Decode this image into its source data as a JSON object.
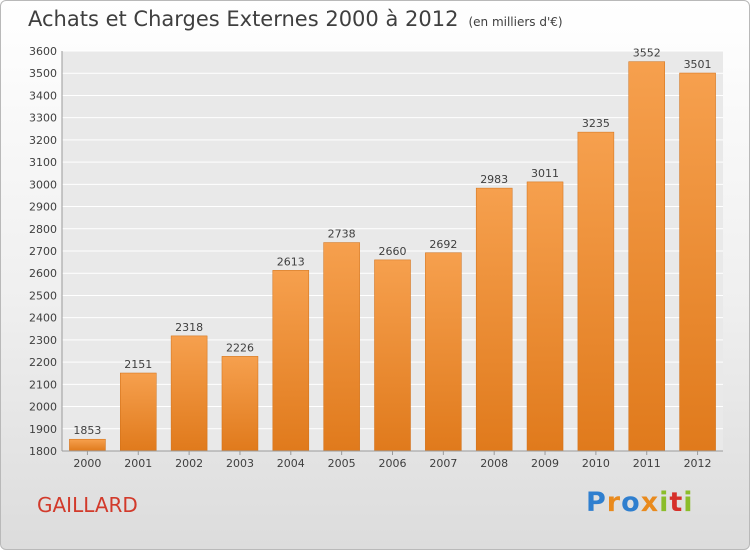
{
  "chart_data": {
    "type": "bar",
    "title": "Achats et Charges Externes 2000 à 2012",
    "subtitle": "(en milliers d'€)",
    "categories": [
      "2000",
      "2001",
      "2002",
      "2003",
      "2004",
      "2005",
      "2006",
      "2007",
      "2008",
      "2009",
      "2010",
      "2011",
      "2012"
    ],
    "values": [
      1853,
      2151,
      2318,
      2226,
      2613,
      2738,
      2660,
      2692,
      2983,
      3011,
      3235,
      3552,
      3501
    ],
    "ylim": [
      1800,
      3600
    ],
    "yticks": [
      1800,
      1900,
      2000,
      2100,
      2200,
      2300,
      2400,
      2500,
      2600,
      2700,
      2800,
      2900,
      3000,
      3100,
      3200,
      3300,
      3400,
      3500,
      3600
    ],
    "grid": true,
    "colors": {
      "bar_top": "#f6a04e",
      "bar_bottom": "#e07a1c",
      "grid": "#ffffff",
      "axis": "#9a9a9a",
      "text": "#3f3f3f"
    }
  },
  "footer": {
    "commune": "GAILLARD",
    "logo": {
      "letters": [
        {
          "ch": "P",
          "color": "#2f7fcf"
        },
        {
          "ch": "r",
          "color": "#e98a1d"
        },
        {
          "ch": "o",
          "color": "#2f7fcf"
        },
        {
          "ch": "x",
          "color": "#e98a1d"
        },
        {
          "ch": "i",
          "color": "#8bbd2a"
        },
        {
          "ch": "t",
          "color": "#d6302a"
        },
        {
          "ch": "i",
          "color": "#8bbd2a"
        }
      ]
    }
  }
}
